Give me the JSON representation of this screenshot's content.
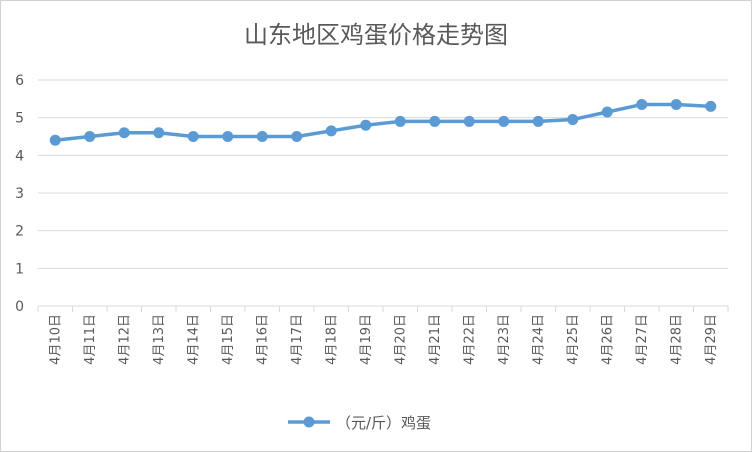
{
  "chart_data": {
    "type": "line",
    "title": "山东地区鸡蛋价格走势图",
    "xlabel": "",
    "ylabel": "",
    "ylim": [
      0,
      6
    ],
    "yticks": [
      0,
      1,
      2,
      3,
      4,
      5,
      6
    ],
    "grid": true,
    "legend_position": "bottom",
    "categories": [
      "4月10日",
      "4月11日",
      "4月12日",
      "4月13日",
      "4月14日",
      "4月15日",
      "4月16日",
      "4月17日",
      "4月18日",
      "4月19日",
      "4月20日",
      "4月21日",
      "4月22日",
      "4月23日",
      "4月24日",
      "4月25日",
      "4月26日",
      "4月27日",
      "4月28日",
      "4月29日"
    ],
    "series": [
      {
        "name": "（元/斤）鸡蛋",
        "color": "#5b9bd5",
        "values": [
          4.4,
          4.5,
          4.6,
          4.6,
          4.5,
          4.5,
          4.5,
          4.5,
          4.65,
          4.8,
          4.9,
          4.9,
          4.9,
          4.9,
          4.9,
          4.95,
          5.15,
          5.35,
          5.35,
          5.3
        ]
      }
    ]
  }
}
